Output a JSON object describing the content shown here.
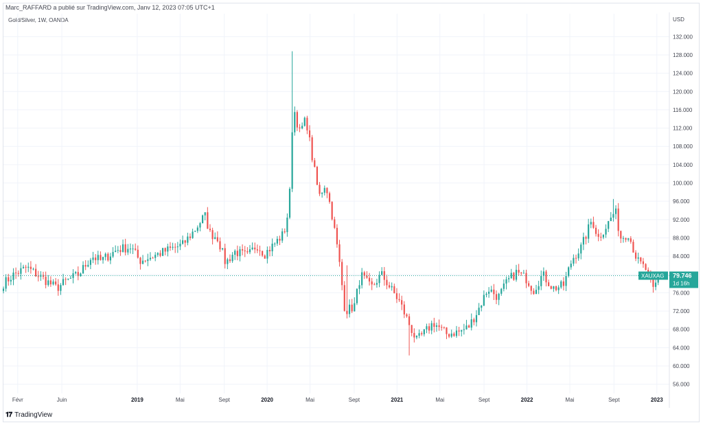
{
  "header": {
    "published_by": "Marc_RAFFARD a publié sur TradingView.com, Janv 12, 2023 07:05 UTC+1",
    "symbol_line": "Gold/Silver, 1W, OANDA"
  },
  "footer": {
    "logo_text": "TradingView",
    "logo_icon": "tradingview-logo-icon"
  },
  "colors": {
    "up": "#26a69a",
    "down": "#ef5350",
    "grid": "#f0f3fa",
    "label_bg": "#26a69a"
  },
  "price_label": {
    "ticker": "XAUXAG",
    "value": "79.746",
    "countdown": "1d 16h"
  },
  "chart_data": {
    "type": "candlestick",
    "ylabel": "USD",
    "ylim": [
      54,
      134
    ],
    "y_ticks": [
      "132.000",
      "128.000",
      "124.000",
      "120.000",
      "116.000",
      "112.000",
      "108.000",
      "104.000",
      "100.000",
      "96.000",
      "92.000",
      "88.000",
      "84.000",
      "80.000",
      "76.000",
      "72.000",
      "68.000",
      "64.000",
      "60.000",
      "56.000"
    ],
    "y_tick_values": [
      132,
      128,
      124,
      120,
      116,
      112,
      108,
      104,
      100,
      96,
      92,
      88,
      84,
      80,
      76,
      72,
      68,
      64,
      60,
      56
    ],
    "x_ticks": [
      {
        "label": "Févr",
        "t": 2018.08,
        "bold": false
      },
      {
        "label": "Juin",
        "t": 2018.42,
        "bold": false
      },
      {
        "label": "2019",
        "t": 2019.0,
        "bold": true
      },
      {
        "label": "Mai",
        "t": 2019.33,
        "bold": false
      },
      {
        "label": "Sept",
        "t": 2019.67,
        "bold": false
      },
      {
        "label": "2020",
        "t": 2020.0,
        "bold": true
      },
      {
        "label": "Mai",
        "t": 2020.33,
        "bold": false
      },
      {
        "label": "Sept",
        "t": 2020.67,
        "bold": false
      },
      {
        "label": "2021",
        "t": 2021.0,
        "bold": true
      },
      {
        "label": "Mai",
        "t": 2021.33,
        "bold": false
      },
      {
        "label": "Sept",
        "t": 2021.67,
        "bold": false
      },
      {
        "label": "2022",
        "t": 2022.0,
        "bold": true
      },
      {
        "label": "Mai",
        "t": 2022.33,
        "bold": false
      },
      {
        "label": "Sept",
        "t": 2022.67,
        "bold": false
      },
      {
        "label": "2023",
        "t": 2023.0,
        "bold": true
      }
    ],
    "x_range": [
      2017.97,
      2023.07
    ],
    "anchors": [
      [
        2017.97,
        78.0
      ],
      [
        2018.05,
        80.0
      ],
      [
        2018.15,
        81.5
      ],
      [
        2018.28,
        79.0
      ],
      [
        2018.38,
        77.0
      ],
      [
        2018.45,
        78.5
      ],
      [
        2018.55,
        80.0
      ],
      [
        2018.65,
        84.0
      ],
      [
        2018.72,
        83.0
      ],
      [
        2018.85,
        85.5
      ],
      [
        2018.95,
        86.0
      ],
      [
        2019.02,
        83.0
      ],
      [
        2019.12,
        84.0
      ],
      [
        2019.25,
        85.5
      ],
      [
        2019.35,
        86.5
      ],
      [
        2019.45,
        90.0
      ],
      [
        2019.52,
        93.0
      ],
      [
        2019.56,
        89.0
      ],
      [
        2019.62,
        88.0
      ],
      [
        2019.68,
        82.5
      ],
      [
        2019.75,
        85.0
      ],
      [
        2019.85,
        84.0
      ],
      [
        2019.92,
        86.5
      ],
      [
        2019.98,
        84.5
      ],
      [
        2020.05,
        86.5
      ],
      [
        2020.13,
        89.0
      ],
      [
        2020.17,
        95.0
      ],
      [
        2020.2,
        117.0
      ],
      [
        2020.25,
        111.0
      ],
      [
        2020.3,
        114.0
      ],
      [
        2020.35,
        105.0
      ],
      [
        2020.4,
        97.0
      ],
      [
        2020.45,
        100.0
      ],
      [
        2020.5,
        93.0
      ],
      [
        2020.55,
        84.0
      ],
      [
        2020.6,
        72.0
      ],
      [
        2020.67,
        73.0
      ],
      [
        2020.72,
        80.0
      ],
      [
        2020.8,
        77.0
      ],
      [
        2020.88,
        80.0
      ],
      [
        2020.95,
        77.0
      ],
      [
        2021.02,
        74.0
      ],
      [
        2021.08,
        70.0
      ],
      [
        2021.15,
        65.5
      ],
      [
        2021.22,
        67.5
      ],
      [
        2021.28,
        69.5
      ],
      [
        2021.38,
        67.0
      ],
      [
        2021.48,
        67.5
      ],
      [
        2021.55,
        68.5
      ],
      [
        2021.62,
        72.0
      ],
      [
        2021.7,
        77.0
      ],
      [
        2021.78,
        75.0
      ],
      [
        2021.85,
        78.5
      ],
      [
        2021.92,
        80.5
      ],
      [
        2022.0,
        79.0
      ],
      [
        2022.05,
        76.5
      ],
      [
        2022.12,
        80.0
      ],
      [
        2022.2,
        77.0
      ],
      [
        2022.28,
        77.5
      ],
      [
        2022.35,
        83.5
      ],
      [
        2022.42,
        86.0
      ],
      [
        2022.5,
        92.0
      ],
      [
        2022.55,
        88.0
      ],
      [
        2022.62,
        91.0
      ],
      [
        2022.68,
        94.0
      ],
      [
        2022.72,
        88.0
      ],
      [
        2022.78,
        89.0
      ],
      [
        2022.85,
        83.0
      ],
      [
        2022.92,
        81.0
      ],
      [
        2022.97,
        76.5
      ],
      [
        2023.02,
        79.75
      ]
    ],
    "spike_highs": [
      [
        2020.2,
        128.8
      ],
      [
        2020.62,
        82.0
      ],
      [
        2021.1,
        62.3
      ],
      [
        2022.66,
        96.5
      ]
    ]
  }
}
